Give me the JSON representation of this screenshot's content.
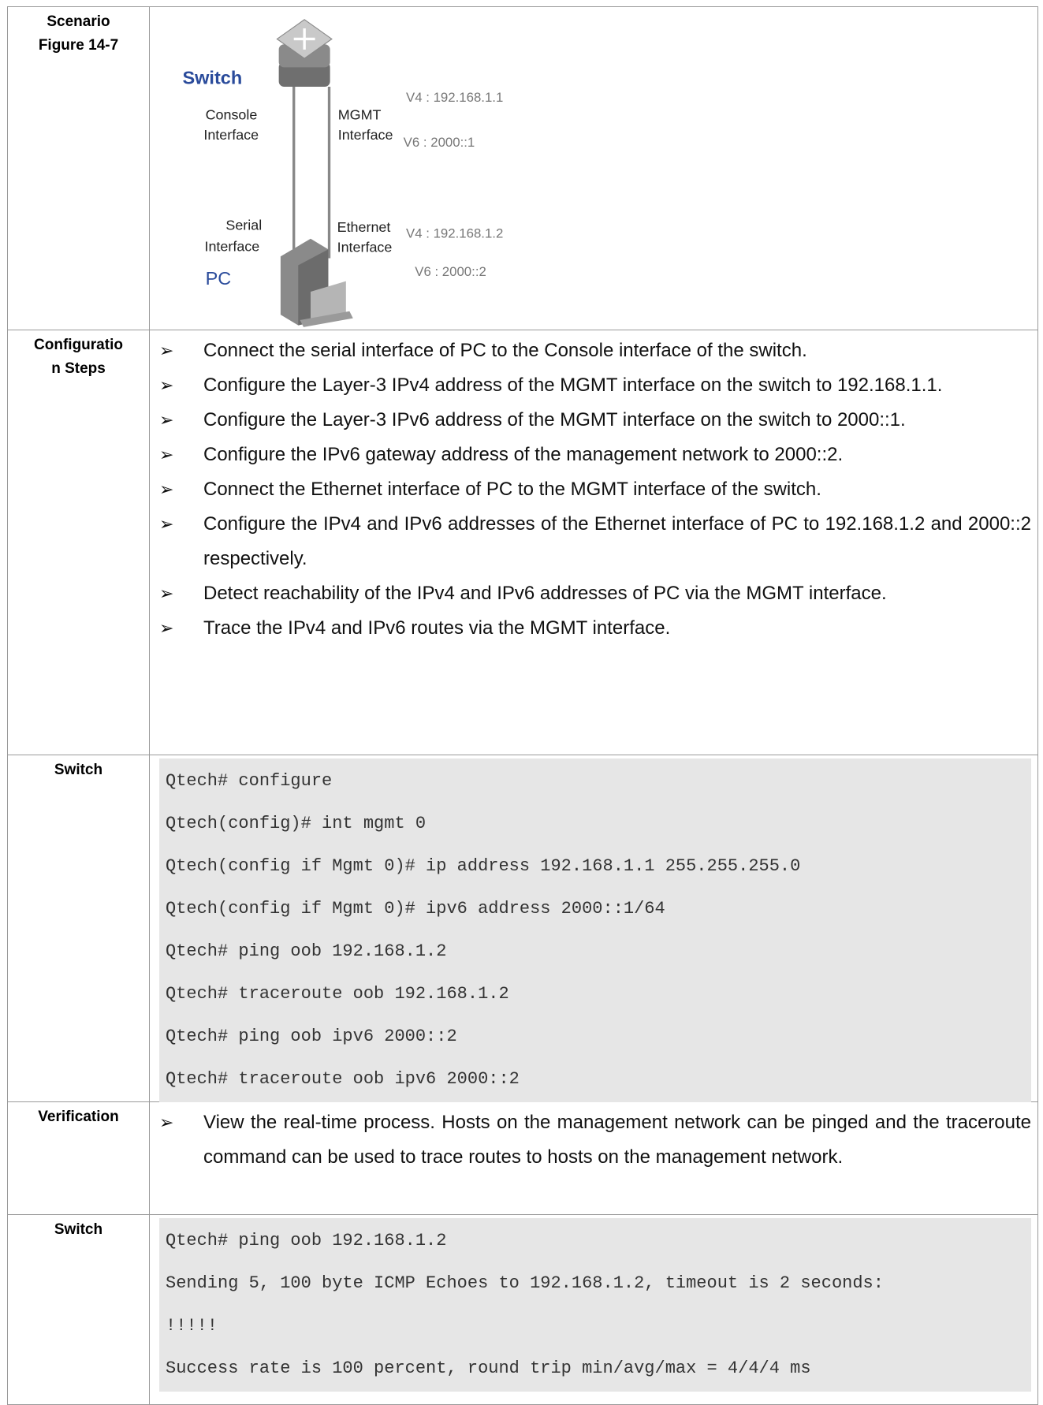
{
  "rows": [
    {
      "label": [
        "Scenario",
        "Figure 14-7"
      ],
      "figure": {
        "switch": "Switch",
        "pc": "PC",
        "console": [
          "Console",
          "Interface"
        ],
        "mgmt": [
          "MGMT",
          "Interface"
        ],
        "serial": [
          "Serial",
          "Interface"
        ],
        "ethernet": [
          "Ethernet",
          "Interface"
        ],
        "switch_v4": "V4 : 192.168.1.1",
        "switch_v6": "V6 : 2000::1",
        "pc_v4": "V4 : 192.168.1.2",
        "pc_v6": "V6 : 2000::2"
      }
    },
    {
      "label": [
        "Configuratio",
        "n Steps"
      ],
      "bullets": [
        "Connect the serial interface of PC to the Console interface of the switch.",
        "Configure the Layer-3 IPv4 address of the MGMT interface on the switch to 192.168.1.1.",
        "Configure the Layer-3 IPv6 address of the MGMT interface on the switch to 2000::1.",
        "Configure the IPv6 gateway address of the management network to 2000::2.",
        "Connect the Ethernet interface of PC to the MGMT interface of the switch.",
        "Configure the IPv4 and IPv6 addresses of the Ethernet interface of PC to 192.168.1.2 and 2000::2 respectively.",
        "Detect reachability of the IPv4 and IPv6 addresses of PC via the MGMT interface.",
        "Trace the IPv4 and IPv6 routes via the MGMT interface."
      ]
    },
    {
      "label": [
        "Switch"
      ],
      "code": [
        "Qtech# configure",
        "Qtech(config)# int mgmt 0",
        "Qtech(config if Mgmt 0)# ip address 192.168.1.1 255.255.255.0",
        "Qtech(config if Mgmt 0)# ipv6 address 2000::1/64",
        "Qtech# ping oob 192.168.1.2",
        "Qtech# traceroute oob 192.168.1.2",
        "Qtech# ping oob ipv6 2000::2",
        "Qtech# traceroute oob ipv6 2000::2"
      ]
    },
    {
      "label": [
        "Verification"
      ],
      "bullets": [
        "View the real-time process. Hosts on the management network can be pinged and the traceroute command can be used to trace routes to hosts on the management network."
      ]
    },
    {
      "label": [
        "Switch"
      ],
      "code": [
        "Qtech# ping oob 192.168.1.2",
        "Sending 5, 100 byte ICMP Echoes to 192.168.1.2, timeout is 2 seconds:",
        "!!!!!",
        "Success rate is 100 percent, round trip min/avg/max = 4/4/4 ms"
      ]
    }
  ]
}
